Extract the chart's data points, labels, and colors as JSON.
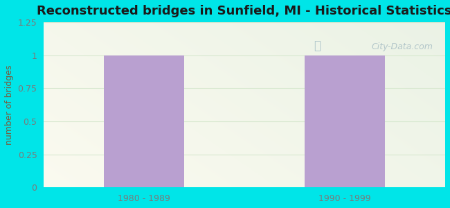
{
  "title": "Reconstructed bridges in Sunfield, MI - Historical Statistics",
  "categories": [
    "1980 - 1989",
    "1990 - 1999"
  ],
  "values": [
    1,
    1
  ],
  "bar_color": "#b9a0d0",
  "ylabel": "number of bridges",
  "ylim": [
    0,
    1.25
  ],
  "yticks": [
    0,
    0.25,
    0.5,
    0.75,
    1,
    1.25
  ],
  "background_outer": "#00e5e8",
  "grid_color": "#d8e8d0",
  "title_color": "#1a1a1a",
  "title_fontsize": 13,
  "ylabel_color": "#7a5a3a",
  "tick_color": "#7a7a7a",
  "watermark": "City-Data.com",
  "bar_positions": [
    0.25,
    0.75
  ],
  "bar_width": 0.2,
  "xlim": [
    0,
    1
  ]
}
